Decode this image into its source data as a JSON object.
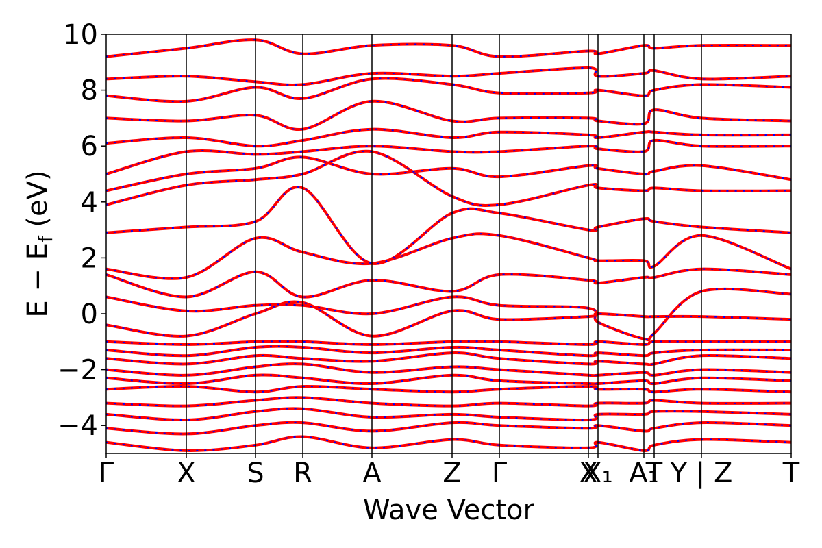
{
  "chart_data": {
    "type": "line",
    "title": "",
    "xlabel": "Wave Vector",
    "ylabel": "E − E_f (eV)",
    "ylabel_parts": {
      "main": "E − E",
      "sub": "f",
      "unit": " (eV)"
    },
    "ylim": [
      -5,
      10
    ],
    "yticks": [
      -4,
      -2,
      0,
      2,
      4,
      6,
      8,
      10
    ],
    "ytick_labels": [
      "−4",
      "−2",
      "0",
      "2",
      "4",
      "6",
      "8",
      "10"
    ],
    "xlim": [
      0,
      10
    ],
    "path_ticks": [
      {
        "x": 0.0,
        "label": "Γ"
      },
      {
        "x": 1.17,
        "label": "X"
      },
      {
        "x": 2.18,
        "label": "S"
      },
      {
        "x": 2.87,
        "label": "R"
      },
      {
        "x": 3.88,
        "label": "A"
      },
      {
        "x": 5.05,
        "label": "Z"
      },
      {
        "x": 5.74,
        "label": "Γ"
      },
      {
        "x": 7.04,
        "label": "X"
      },
      {
        "x": 7.18,
        "label": "X₁"
      },
      {
        "x": 7.85,
        "label": "A₁"
      },
      {
        "x": 8.0,
        "label": "T"
      },
      {
        "x": 8.69,
        "label": "Y | Z"
      },
      {
        "x": 10.0,
        "label": "T"
      }
    ],
    "grid": false,
    "legend": "none",
    "series_styles": [
      {
        "role": "bands-solid",
        "color": "#ff0000",
        "style": "solid"
      },
      {
        "role": "bands-dashed",
        "color": "#0000ff",
        "style": "dashed"
      }
    ],
    "series": [
      {
        "k": [
          0.0,
          1.17,
          2.18,
          2.87,
          3.88,
          5.05,
          5.74,
          7.04,
          7.18,
          7.85,
          8.0,
          8.69,
          10.0
        ],
        "values": [
          -4.6,
          -4.9,
          -4.7,
          -4.4,
          -4.8,
          -4.5,
          -4.7,
          -4.8,
          -4.6,
          -4.9,
          -4.7,
          -4.5,
          -4.6
        ]
      },
      {
        "k": [
          0.0,
          1.17,
          2.18,
          2.87,
          3.88,
          5.05,
          5.74,
          7.04,
          7.18,
          7.85,
          8.0,
          8.69,
          10.0
        ],
        "values": [
          -4.1,
          -4.3,
          -4.0,
          -3.9,
          -4.2,
          -3.9,
          -4.0,
          -4.1,
          -4.0,
          -4.2,
          -4.1,
          -3.9,
          -4.0
        ]
      },
      {
        "k": [
          0.0,
          1.17,
          2.18,
          2.87,
          3.88,
          5.05,
          5.74,
          7.04,
          7.18,
          7.85,
          8.0,
          8.69,
          10.0
        ],
        "values": [
          -3.6,
          -3.8,
          -3.5,
          -3.4,
          -3.7,
          -3.6,
          -3.7,
          -3.8,
          -3.6,
          -3.6,
          -3.5,
          -3.5,
          -3.6
        ]
      },
      {
        "k": [
          0.0,
          1.17,
          2.18,
          2.87,
          3.88,
          5.05,
          5.74,
          7.04,
          7.18,
          7.85,
          8.0,
          8.69,
          10.0
        ],
        "values": [
          -3.2,
          -3.3,
          -3.1,
          -3.0,
          -3.2,
          -3.3,
          -3.2,
          -3.3,
          -3.2,
          -3.2,
          -3.1,
          -3.2,
          -3.2
        ]
      },
      {
        "k": [
          0.0,
          1.17,
          2.18,
          2.87,
          3.88,
          5.05,
          5.74,
          7.04,
          7.18,
          7.85,
          8.0,
          8.69,
          10.0
        ],
        "values": [
          -2.7,
          -2.6,
          -2.8,
          -2.6,
          -2.7,
          -2.8,
          -2.7,
          -2.6,
          -2.7,
          -2.7,
          -2.8,
          -2.7,
          -2.8
        ]
      },
      {
        "k": [
          0.0,
          1.17,
          2.18,
          2.87,
          3.88,
          5.05,
          5.74,
          7.04,
          7.18,
          7.85,
          8.0,
          8.69,
          10.0
        ],
        "values": [
          -2.3,
          -2.5,
          -2.2,
          -2.3,
          -2.5,
          -2.2,
          -2.4,
          -2.5,
          -2.5,
          -2.4,
          -2.5,
          -2.3,
          -2.4
        ]
      },
      {
        "k": [
          0.0,
          1.17,
          2.18,
          2.87,
          3.88,
          5.05,
          5.74,
          7.04,
          7.18,
          7.85,
          8.0,
          8.69,
          10.0
        ],
        "values": [
          -2.0,
          -2.2,
          -1.9,
          -1.8,
          -2.1,
          -1.9,
          -2.0,
          -2.2,
          -2.2,
          -2.1,
          -2.2,
          -2.0,
          -2.1
        ]
      },
      {
        "k": [
          0.0,
          1.17,
          2.18,
          2.87,
          3.88,
          5.05,
          5.74,
          7.04,
          7.18,
          7.85,
          8.0,
          8.69,
          10.0
        ],
        "values": [
          -1.6,
          -1.8,
          -1.5,
          -1.6,
          -1.7,
          -1.4,
          -1.6,
          -1.8,
          -1.7,
          -1.8,
          -1.8,
          -1.5,
          -1.6
        ]
      },
      {
        "k": [
          0.0,
          1.17,
          2.18,
          2.87,
          3.88,
          5.05,
          5.74,
          7.04,
          7.18,
          7.85,
          8.0,
          8.69,
          10.0
        ],
        "values": [
          -1.3,
          -1.5,
          -1.2,
          -1.2,
          -1.4,
          -1.2,
          -1.3,
          -1.5,
          -1.4,
          -1.5,
          -1.4,
          -1.3,
          -1.3
        ]
      },
      {
        "k": [
          0.0,
          1.17,
          2.18,
          2.87,
          3.88,
          5.05,
          5.74,
          7.04,
          7.18,
          7.85,
          8.0,
          8.69,
          10.0
        ],
        "values": [
          -1.0,
          -1.1,
          -1.0,
          -1.0,
          -1.1,
          -1.0,
          -1.0,
          -1.1,
          -1.0,
          -1.1,
          -1.0,
          -1.0,
          -1.0
        ]
      },
      {
        "k": [
          0.0,
          1.17,
          2.18,
          2.87,
          3.88,
          5.05,
          5.74,
          7.04,
          7.18,
          7.85,
          8.0,
          8.69,
          10.0
        ],
        "values": [
          -0.4,
          -0.8,
          0.0,
          0.4,
          -0.8,
          0.1,
          -0.2,
          -0.1,
          0.0,
          -0.1,
          -0.1,
          -0.1,
          -0.2
        ]
      },
      {
        "k": [
          0.0,
          1.17,
          2.18,
          2.87,
          3.88,
          5.05,
          5.74,
          7.04,
          7.18,
          7.85,
          8.0,
          8.69,
          10.0
        ],
        "values": [
          0.6,
          0.1,
          0.3,
          0.3,
          0.0,
          0.6,
          0.3,
          0.2,
          -0.3,
          -0.9,
          -0.7,
          0.8,
          0.7
        ]
      },
      {
        "k": [
          0.0,
          1.17,
          2.18,
          2.87,
          3.88,
          5.05,
          5.74,
          7.04,
          7.18,
          7.85,
          8.0,
          8.69,
          10.0
        ],
        "values": [
          1.4,
          0.6,
          1.5,
          0.6,
          1.2,
          0.8,
          1.4,
          1.2,
          1.1,
          1.3,
          1.3,
          1.6,
          1.4
        ]
      },
      {
        "k": [
          0.0,
          1.17,
          2.18,
          2.87,
          3.88,
          5.05,
          5.74,
          7.04,
          7.18,
          7.85,
          8.0,
          8.69,
          10.0
        ],
        "values": [
          1.6,
          1.3,
          2.7,
          2.2,
          1.8,
          2.7,
          2.8,
          2.0,
          1.9,
          1.9,
          1.7,
          2.8,
          1.6
        ]
      },
      {
        "k": [
          0.0,
          1.17,
          2.18,
          2.87,
          3.88,
          5.05,
          5.74,
          7.04,
          7.18,
          7.85,
          8.0,
          8.69,
          10.0
        ],
        "values": [
          2.9,
          3.1,
          3.3,
          4.5,
          1.8,
          3.6,
          3.6,
          3.0,
          3.1,
          3.4,
          3.3,
          3.1,
          2.9
        ]
      },
      {
        "k": [
          0.0,
          1.17,
          2.18,
          2.87,
          3.88,
          5.05,
          5.74,
          7.04,
          7.18,
          7.85,
          8.0,
          8.69,
          10.0
        ],
        "values": [
          3.9,
          4.6,
          4.8,
          5.0,
          5.8,
          4.2,
          3.9,
          4.6,
          4.5,
          4.4,
          4.5,
          4.4,
          4.4
        ]
      },
      {
        "k": [
          0.0,
          1.17,
          2.18,
          2.87,
          3.88,
          5.05,
          5.74,
          7.04,
          7.18,
          7.85,
          8.0,
          8.69,
          10.0
        ],
        "values": [
          4.4,
          5.0,
          5.2,
          5.6,
          5.0,
          5.2,
          4.9,
          5.3,
          5.2,
          5.0,
          5.1,
          5.3,
          4.8
        ]
      },
      {
        "k": [
          0.0,
          1.17,
          2.18,
          2.87,
          3.88,
          5.05,
          5.74,
          7.04,
          7.18,
          7.85,
          8.0,
          8.69,
          10.0
        ],
        "values": [
          5.0,
          5.8,
          5.7,
          5.8,
          6.0,
          5.8,
          5.8,
          6.0,
          5.9,
          5.8,
          6.2,
          6.0,
          6.0
        ]
      },
      {
        "k": [
          0.0,
          1.17,
          2.18,
          2.87,
          3.88,
          5.05,
          5.74,
          7.04,
          7.18,
          7.85,
          8.0,
          8.69,
          10.0
        ],
        "values": [
          6.1,
          6.3,
          6.0,
          6.2,
          6.6,
          6.3,
          6.5,
          6.4,
          6.3,
          6.5,
          6.5,
          6.4,
          6.4
        ]
      },
      {
        "k": [
          0.0,
          1.17,
          2.18,
          2.87,
          3.88,
          5.05,
          5.74,
          7.04,
          7.18,
          7.85,
          8.0,
          8.69,
          10.0
        ],
        "values": [
          7.0,
          6.9,
          7.1,
          6.6,
          7.6,
          6.9,
          7.0,
          7.0,
          6.9,
          6.8,
          7.3,
          7.0,
          6.9
        ]
      },
      {
        "k": [
          0.0,
          1.17,
          2.18,
          2.87,
          3.88,
          5.05,
          5.74,
          7.04,
          7.18,
          7.85,
          8.0,
          8.69,
          10.0
        ],
        "values": [
          7.8,
          7.6,
          8.1,
          7.7,
          8.4,
          8.2,
          7.9,
          7.9,
          8.0,
          7.8,
          8.0,
          8.2,
          8.1
        ]
      },
      {
        "k": [
          0.0,
          1.17,
          2.18,
          2.87,
          3.88,
          5.05,
          5.74,
          7.04,
          7.18,
          7.85,
          8.0,
          8.69,
          10.0
        ],
        "values": [
          8.4,
          8.5,
          8.3,
          8.2,
          8.6,
          8.5,
          8.6,
          8.8,
          8.5,
          8.6,
          8.7,
          8.4,
          8.5
        ]
      },
      {
        "k": [
          0.0,
          1.17,
          2.18,
          2.87,
          3.88,
          5.05,
          5.74,
          7.04,
          7.18,
          7.85,
          8.0,
          8.69,
          10.0
        ],
        "values": [
          9.2,
          9.5,
          9.8,
          9.3,
          9.6,
          9.6,
          9.2,
          9.4,
          9.3,
          9.6,
          9.5,
          9.6,
          9.6
        ]
      }
    ]
  }
}
